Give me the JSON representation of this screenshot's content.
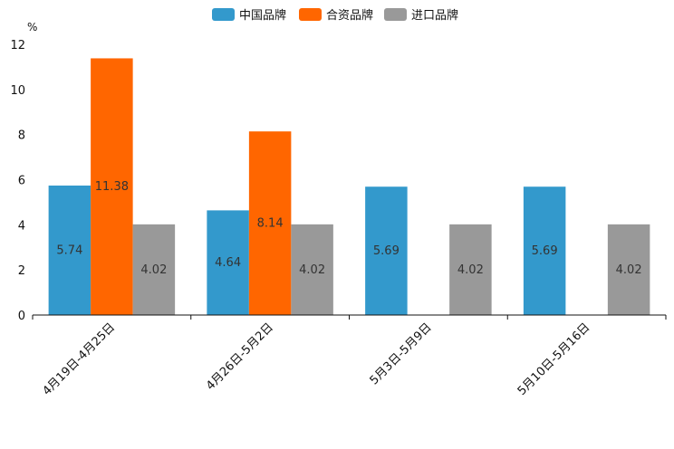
{
  "chart_data": {
    "type": "bar",
    "title": "",
    "xlabel": "",
    "ylabel": "%",
    "ylim": [
      0,
      12
    ],
    "yticks": [
      0,
      2,
      4,
      6,
      8,
      10,
      12
    ],
    "legend_position": "top-center",
    "categories": [
      "4月19日-4月25日",
      "4月26日-5月2日",
      "5月3日-5月9日",
      "5月10日-5月16日"
    ],
    "series": [
      {
        "name": "中国品牌",
        "color": "#3399CC",
        "values": [
          5.74,
          4.64,
          5.69,
          5.69
        ],
        "labels": [
          "5.74",
          "4.64",
          "5.69",
          "5.69"
        ]
      },
      {
        "name": "合资品牌",
        "color": "#FF6600",
        "values": [
          11.38,
          8.14,
          null,
          null
        ],
        "labels": [
          "11.38",
          "8.14",
          "",
          ""
        ]
      },
      {
        "name": "进口品牌",
        "color": "#999999",
        "values": [
          4.02,
          4.02,
          4.02,
          4.02
        ],
        "labels": [
          "4.02",
          "4.02",
          "4.02",
          "4.02"
        ]
      }
    ]
  }
}
